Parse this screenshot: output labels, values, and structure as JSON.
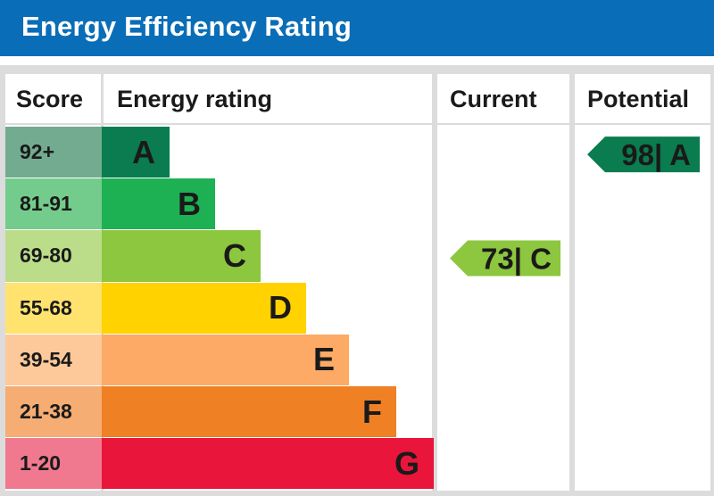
{
  "header": {
    "title": "Energy Efficiency Rating"
  },
  "columns": {
    "score": "Score",
    "energy_rating": "Energy rating",
    "current": "Current",
    "potential": "Potential"
  },
  "chart_data": {
    "type": "bar",
    "title": "Energy Efficiency Rating",
    "bands": [
      {
        "score": "92+",
        "letter": "A",
        "bar_color": "#0a7c4f",
        "score_bg": "#72ab8f"
      },
      {
        "score": "81-91",
        "letter": "B",
        "bar_color": "#1db154",
        "score_bg": "#74cc8c"
      },
      {
        "score": "69-80",
        "letter": "C",
        "bar_color": "#8dc63f",
        "score_bg": "#bbdd8a"
      },
      {
        "score": "55-68",
        "letter": "D",
        "bar_color": "#ffd200",
        "score_bg": "#ffe36e"
      },
      {
        "score": "39-54",
        "letter": "E",
        "bar_color": "#fcaa65",
        "score_bg": "#fdc99b"
      },
      {
        "score": "21-38",
        "letter": "F",
        "bar_color": "#ef8023",
        "score_bg": "#f5ad73"
      },
      {
        "score": "1-20",
        "letter": "G",
        "bar_color": "#e9153b",
        "score_bg": "#f07990"
      }
    ],
    "current": {
      "value": 73,
      "letter": "C",
      "label": "73| C",
      "color": "#8dc63f"
    },
    "potential": {
      "value": 98,
      "letter": "A",
      "label": "98| A",
      "color": "#0a7c4f"
    }
  }
}
